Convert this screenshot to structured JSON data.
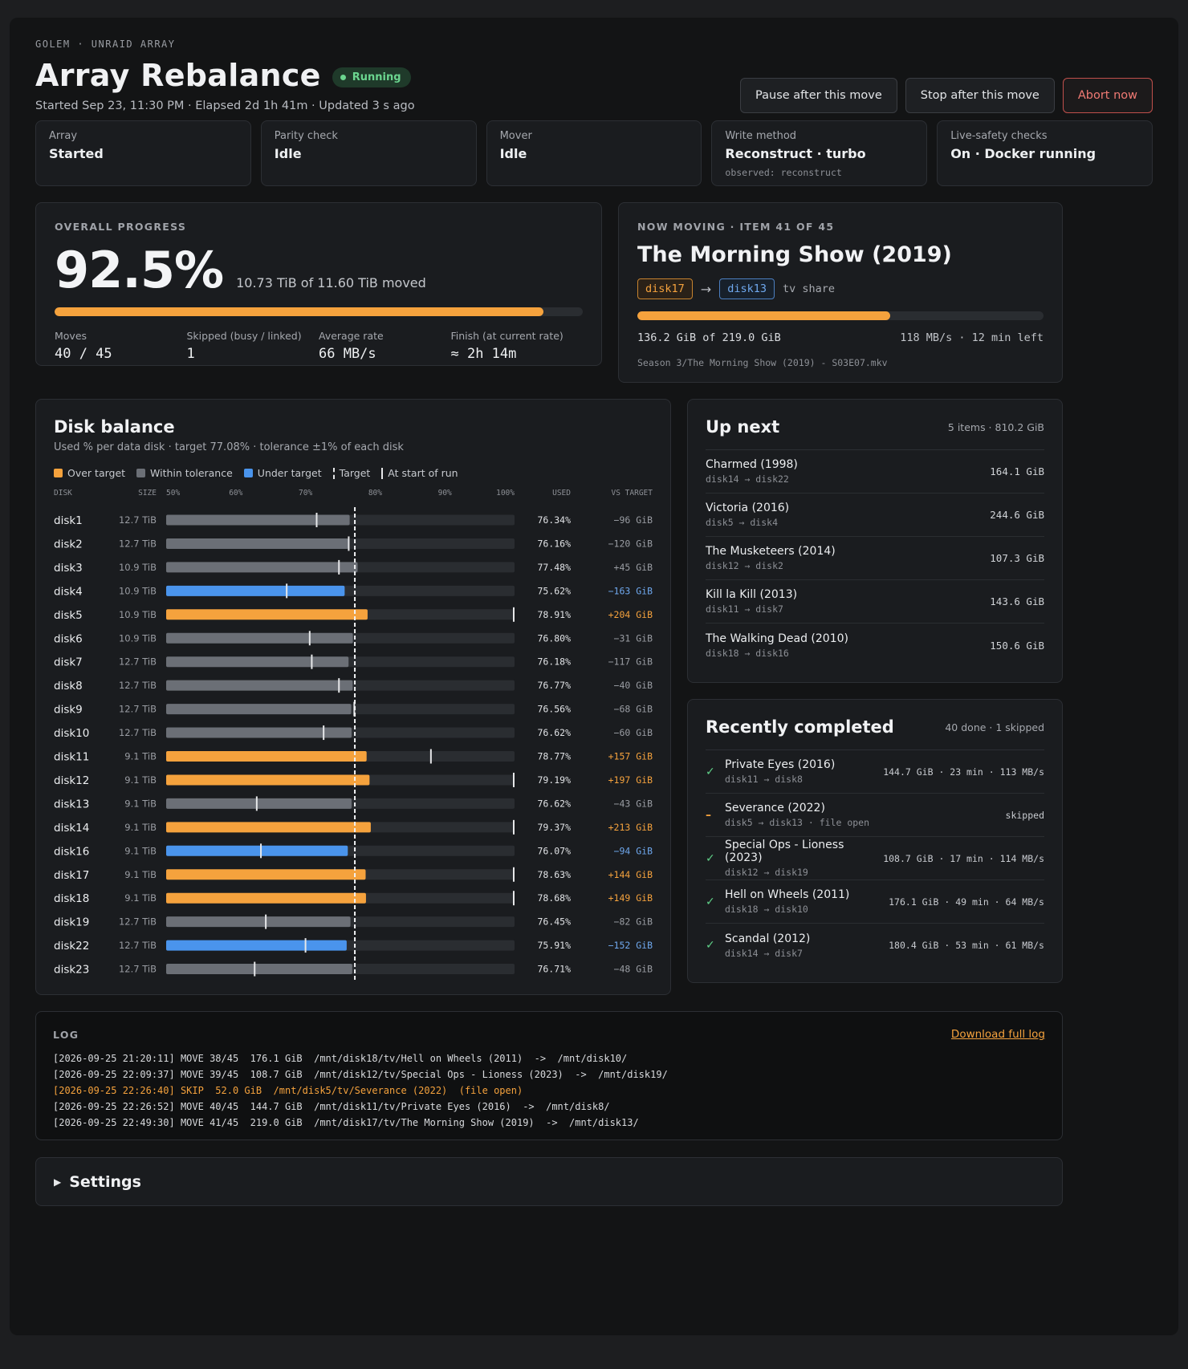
{
  "header": {
    "kicker": "GOLEM · UNRAID ARRAY",
    "title": "Array Rebalance",
    "status_badge": "Running",
    "subtitle": "Started Sep 23, 11:30 PM · Elapsed 2d 1h 41m · Updated 3 s ago",
    "actions": {
      "pause": "Pause after this move",
      "stop": "Stop after this move",
      "abort": "Abort now"
    }
  },
  "tiles": [
    {
      "label": "Array",
      "value": "Started",
      "note": ""
    },
    {
      "label": "Parity check",
      "value": "Idle",
      "note": ""
    },
    {
      "label": "Mover",
      "value": "Idle",
      "note": ""
    },
    {
      "label": "Write method",
      "value": "Reconstruct · turbo",
      "note": "observed: reconstruct"
    },
    {
      "label": "Live-safety checks",
      "value": "On · Docker running",
      "note": ""
    }
  ],
  "progress": {
    "kicker": "OVERALL PROGRESS",
    "percent_text": "92.5%",
    "percent": 92.5,
    "moved_text": "10.73 TiB of 11.60 TiB moved",
    "stats": [
      {
        "label": "Moves",
        "value": "40 / 45"
      },
      {
        "label": "Skipped (busy / linked)",
        "value": "1"
      },
      {
        "label": "Average rate",
        "value": "66 MB/s"
      },
      {
        "label": "Finish (at current rate)",
        "value": "≈ 2h 14m"
      }
    ]
  },
  "now_moving": {
    "kicker": "NOW MOVING · ITEM 41 OF 45",
    "title": "The Morning Show (2019)",
    "source": "disk17",
    "dest": "disk13",
    "share": "tv share",
    "percent": 62.2,
    "bytes_text": "136.2 GiB of 219.0 GiB",
    "rate_text": "118 MB/s · 12 min left",
    "file": "Season 3/The Morning Show (2019) - S03E07.mkv"
  },
  "disk_balance": {
    "title": "Disk balance",
    "subtitle": "Used % per data disk · target 77.08% · tolerance ±1% of each disk",
    "legend": {
      "over": "Over target",
      "within": "Within tolerance",
      "under": "Under target",
      "target": "Target",
      "start": "At start of run"
    },
    "columns": {
      "disk": "DISK",
      "size": "SIZE",
      "used": "USED",
      "vs": "VS TARGET"
    },
    "colors": {
      "over": "#f5a23d",
      "within": "#6b6f76",
      "under": "#4a94ec"
    }
  },
  "chart_data": {
    "type": "bar",
    "title": "Disk balance",
    "axis_ticks": [
      "50%",
      "60%",
      "70%",
      "80%",
      "90%",
      "100%"
    ],
    "xlim": [
      50,
      100
    ],
    "target": 77.08,
    "categories": [
      "disk1",
      "disk2",
      "disk3",
      "disk4",
      "disk5",
      "disk6",
      "disk7",
      "disk8",
      "disk9",
      "disk10",
      "disk11",
      "disk12",
      "disk13",
      "disk14",
      "disk16",
      "disk17",
      "disk18",
      "disk19",
      "disk22",
      "disk23"
    ],
    "sizes": [
      "12.7 TiB",
      "12.7 TiB",
      "10.9 TiB",
      "10.9 TiB",
      "10.9 TiB",
      "10.9 TiB",
      "12.7 TiB",
      "12.7 TiB",
      "12.7 TiB",
      "12.7 TiB",
      "9.1 TiB",
      "9.1 TiB",
      "9.1 TiB",
      "9.1 TiB",
      "9.1 TiB",
      "9.1 TiB",
      "9.1 TiB",
      "12.7 TiB",
      "12.7 TiB",
      "12.7 TiB"
    ],
    "used": [
      76.34,
      76.16,
      77.48,
      75.62,
      78.91,
      76.8,
      76.18,
      76.77,
      76.56,
      76.62,
      78.77,
      79.19,
      76.62,
      79.37,
      76.07,
      78.63,
      78.68,
      76.45,
      75.91,
      76.71
    ],
    "used_text": [
      "76.34%",
      "76.16%",
      "77.48%",
      "75.62%",
      "78.91%",
      "76.80%",
      "76.18%",
      "76.77%",
      "76.56%",
      "76.62%",
      "78.77%",
      "79.19%",
      "76.62%",
      "79.37%",
      "76.07%",
      "78.63%",
      "78.68%",
      "76.45%",
      "75.91%",
      "76.71%"
    ],
    "start": [
      71.6,
      76.2,
      74.8,
      67.3,
      100,
      70.6,
      70.9,
      74.8,
      77.0,
      72.6,
      88.0,
      100,
      63.0,
      100,
      63.6,
      100,
      100,
      64.3,
      70.0,
      62.7
    ],
    "status": [
      "within",
      "within",
      "within",
      "under",
      "over",
      "within",
      "within",
      "within",
      "within",
      "within",
      "over",
      "over",
      "within",
      "over",
      "under",
      "over",
      "over",
      "within",
      "under",
      "within"
    ],
    "vs_target": [
      "−96 GiB",
      "−120 GiB",
      "+45 GiB",
      "−163 GiB",
      "+204 GiB",
      "−31 GiB",
      "−117 GiB",
      "−40 GiB",
      "−68 GiB",
      "−60 GiB",
      "+157 GiB",
      "+197 GiB",
      "−43 GiB",
      "+213 GiB",
      "−94 GiB",
      "+144 GiB",
      "+149 GiB",
      "−82 GiB",
      "−152 GiB",
      "−48 GiB"
    ]
  },
  "up_next": {
    "title": "Up next",
    "meta": "5 items · 810.2 GiB",
    "items": [
      {
        "name": "Charmed (1998)",
        "route": "disk14 → disk22",
        "size": "164.1 GiB"
      },
      {
        "name": "Victoria (2016)",
        "route": "disk5 → disk4",
        "size": "244.6 GiB"
      },
      {
        "name": "The Musketeers (2014)",
        "route": "disk12 → disk2",
        "size": "107.3 GiB"
      },
      {
        "name": "Kill la Kill (2013)",
        "route": "disk11 → disk7",
        "size": "143.6 GiB"
      },
      {
        "name": "The Walking Dead (2010)",
        "route": "disk18 → disk16",
        "size": "150.6 GiB"
      }
    ]
  },
  "recent": {
    "title": "Recently completed",
    "meta": "40 done · 1 skipped",
    "items": [
      {
        "icon": "check-icon",
        "name": "Private Eyes (2016)",
        "route": "disk11 → disk8",
        "stat": "144.7 GiB · 23 min · 113 MB/s"
      },
      {
        "icon": "skip-icon",
        "name": "Severance (2022)",
        "route": "disk5 → disk13 · file open",
        "stat": "skipped"
      },
      {
        "icon": "check-icon",
        "name": "Special Ops - Lioness (2023)",
        "route": "disk12 → disk19",
        "stat": "108.7 GiB · 17 min · 114 MB/s"
      },
      {
        "icon": "check-icon",
        "name": "Hell on Wheels (2011)",
        "route": "disk18 → disk10",
        "stat": "176.1 GiB · 49 min · 64 MB/s"
      },
      {
        "icon": "check-icon",
        "name": "Scandal (2012)",
        "route": "disk14 → disk7",
        "stat": "180.4 GiB · 53 min · 61 MB/s"
      }
    ]
  },
  "log": {
    "title": "LOG",
    "download": "Download full log",
    "lines": [
      {
        "text": "[2026-09-25 21:20:11] MOVE 38/45  176.1 GiB  /mnt/disk18/tv/Hell on Wheels (2011)  ->  /mnt/disk10/",
        "skip": false
      },
      {
        "text": "[2026-09-25 22:09:37] MOVE 39/45  108.7 GiB  /mnt/disk12/tv/Special Ops - Lioness (2023)  ->  /mnt/disk19/",
        "skip": false
      },
      {
        "text": "[2026-09-25 22:26:40] SKIP  52.0 GiB  /mnt/disk5/tv/Severance (2022)  (file open)",
        "skip": true
      },
      {
        "text": "[2026-09-25 22:26:52] MOVE 40/45  144.7 GiB  /mnt/disk11/tv/Private Eyes (2016)  ->  /mnt/disk8/",
        "skip": false
      },
      {
        "text": "[2026-09-25 22:49:30] MOVE 41/45  219.0 GiB  /mnt/disk17/tv/The Morning Show (2019)  ->  /mnt/disk13/",
        "skip": false
      }
    ]
  },
  "settings": {
    "label": "Settings"
  }
}
